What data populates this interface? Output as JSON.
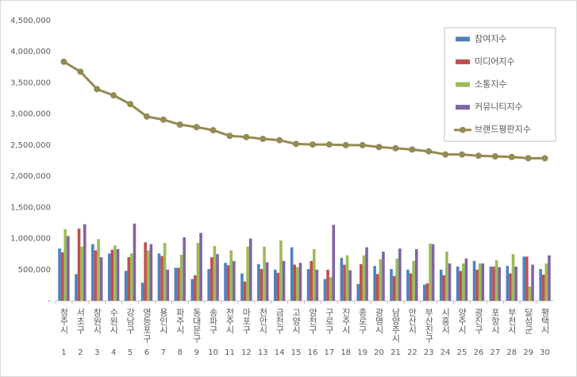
{
  "chart_data": {
    "type": "bar",
    "categories": [
      "청주시",
      "서초구",
      "창원시",
      "수원시",
      "강남구",
      "영등포구",
      "용인시",
      "파주시",
      "동대문구",
      "송파구",
      "전주시",
      "마포구",
      "천안시",
      "금천구",
      "고양시",
      "양천구",
      "구로구",
      "진주시",
      "종로구",
      "광명시",
      "남양주시",
      "안산시",
      "부산진구",
      "시흥시",
      "양주시",
      "광진구",
      "포항시",
      "부천시",
      "달성군",
      "평택시"
    ],
    "ranks": [
      1,
      2,
      3,
      4,
      5,
      6,
      7,
      8,
      9,
      10,
      11,
      12,
      13,
      14,
      15,
      16,
      17,
      18,
      19,
      20,
      21,
      22,
      23,
      24,
      25,
      26,
      27,
      28,
      29,
      30
    ],
    "series": [
      {
        "name": "참여지수",
        "color": "#4f81bd",
        "values": [
          840000,
          430000,
          910000,
          760000,
          480000,
          290000,
          760000,
          530000,
          350000,
          510000,
          610000,
          440000,
          590000,
          500000,
          860000,
          510000,
          350000,
          690000,
          270000,
          560000,
          510000,
          500000,
          260000,
          500000,
          550000,
          640000,
          550000,
          560000,
          710000,
          510000
        ]
      },
      {
        "name": "미디어지수",
        "color": "#c0504d",
        "values": [
          780000,
          1160000,
          810000,
          820000,
          700000,
          940000,
          720000,
          530000,
          410000,
          700000,
          570000,
          310000,
          510000,
          450000,
          580000,
          640000,
          500000,
          580000,
          590000,
          430000,
          400000,
          440000,
          280000,
          410000,
          480000,
          500000,
          550000,
          440000,
          710000,
          420000
        ]
      },
      {
        "name": "소통지수",
        "color": "#9bbb59",
        "values": [
          1150000,
          870000,
          990000,
          890000,
          760000,
          810000,
          930000,
          740000,
          930000,
          880000,
          810000,
          870000,
          870000,
          970000,
          540000,
          830000,
          380000,
          730000,
          730000,
          670000,
          680000,
          640000,
          920000,
          790000,
          600000,
          600000,
          650000,
          750000,
          230000,
          600000
        ]
      },
      {
        "name": "커뮤니티지수",
        "color": "#8064a2",
        "values": [
          1040000,
          1230000,
          700000,
          830000,
          1240000,
          910000,
          500000,
          1020000,
          1090000,
          750000,
          640000,
          1000000,
          620000,
          640000,
          610000,
          500000,
          1220000,
          490000,
          860000,
          790000,
          840000,
          830000,
          910000,
          600000,
          680000,
          600000,
          540000,
          550000,
          580000,
          730000
        ]
      },
      {
        "name": "브랜드평판지수",
        "type": "line",
        "color": "#948a54",
        "values": [
          3840000,
          3680000,
          3400000,
          3300000,
          3160000,
          2960000,
          2910000,
          2830000,
          2790000,
          2740000,
          2650000,
          2630000,
          2600000,
          2580000,
          2520000,
          2510000,
          2510000,
          2500000,
          2500000,
          2470000,
          2450000,
          2430000,
          2400000,
          2350000,
          2350000,
          2330000,
          2320000,
          2310000,
          2290000,
          2290000
        ]
      }
    ],
    "ylim": [
      0,
      4500000
    ],
    "yticks": [
      {
        "value": 0,
        "label": "-"
      },
      {
        "value": 500000,
        "label": "500,000"
      },
      {
        "value": 1000000,
        "label": "1,000,000"
      },
      {
        "value": 1500000,
        "label": "1,500,000"
      },
      {
        "value": 2000000,
        "label": "2,000,000"
      },
      {
        "value": 2500000,
        "label": "2,500,000"
      },
      {
        "value": 3000000,
        "label": "3,000,000"
      },
      {
        "value": 3500000,
        "label": "3,500,000"
      },
      {
        "value": 4000000,
        "label": "4,000,000"
      },
      {
        "value": 4500000,
        "label": "4,500,000"
      }
    ],
    "grid": false
  }
}
